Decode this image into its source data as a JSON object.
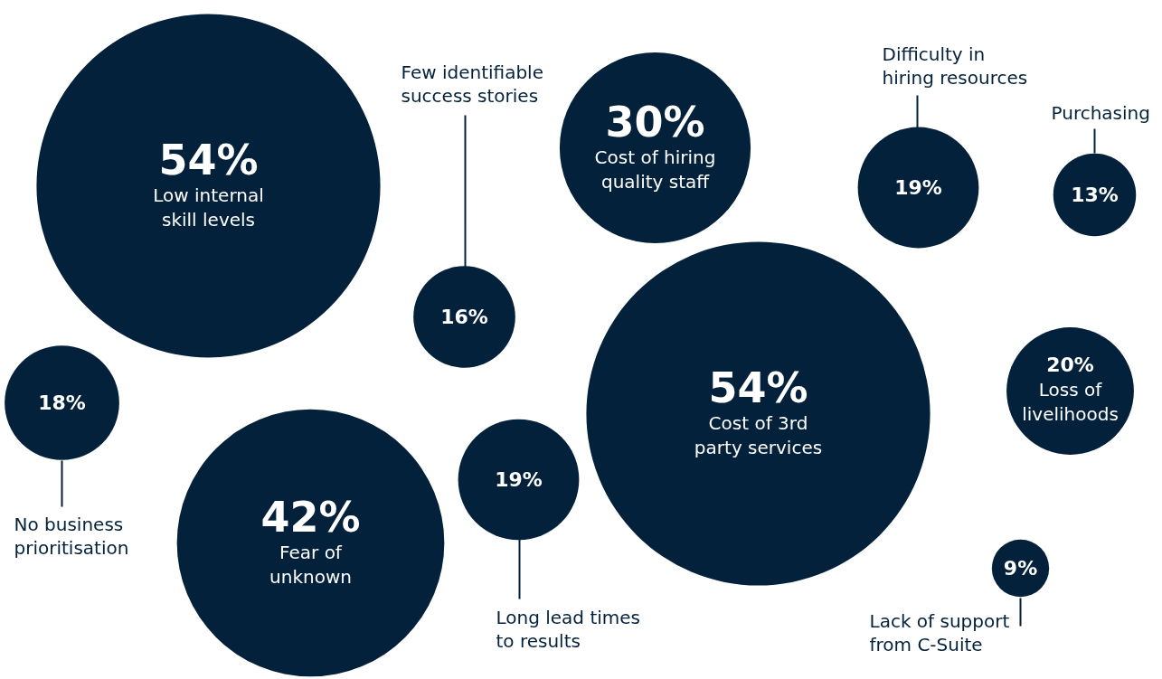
{
  "chart_data": {
    "type": "other",
    "color": "#03213a",
    "categories": [
      "Low internal\nskill levels",
      "Few identifiable\nsuccess stories",
      "Cost of hiring\nquality staff",
      "Difficulty in\nhiring resources",
      "Purchasing",
      "Cost of 3rd\nparty services",
      "Loss of\nlivelihoods",
      "No business\nprioritisation",
      "Fear of\nunknown",
      "Long lead times\nto results",
      "Lack of support\nfrom C-Suite"
    ],
    "values": [
      54,
      16,
      30,
      19,
      13,
      54,
      20,
      18,
      42,
      19,
      9
    ],
    "value_labels": [
      "54%",
      "16%",
      "30%",
      "19%",
      "13%",
      "54%",
      "20%",
      "18%",
      "42%",
      "19%",
      "9%"
    ]
  }
}
